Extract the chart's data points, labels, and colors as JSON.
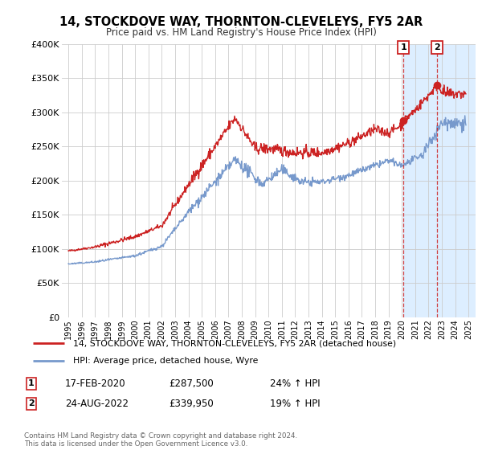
{
  "title": "14, STOCKDOVE WAY, THORNTON-CLEVELEYS, FY5 2AR",
  "subtitle": "Price paid vs. HM Land Registry's House Price Index (HPI)",
  "legend_line1": "14, STOCKDOVE WAY, THORNTON-CLEVELEYS, FY5 2AR (detached house)",
  "legend_line2": "HPI: Average price, detached house, Wyre",
  "sale1_date": "17-FEB-2020",
  "sale1_price": 287500,
  "sale1_hpi": "24% ↑ HPI",
  "sale1_year": 2020.12,
  "sale2_date": "24-AUG-2022",
  "sale2_price": 339950,
  "sale2_hpi": "19% ↑ HPI",
  "sale2_year": 2022.64,
  "ylim": [
    0,
    400000
  ],
  "yticks": [
    0,
    50000,
    100000,
    150000,
    200000,
    250000,
    300000,
    350000,
    400000
  ],
  "ytick_labels": [
    "£0",
    "£50K",
    "£100K",
    "£150K",
    "£200K",
    "£250K",
    "£300K",
    "£350K",
    "£400K"
  ],
  "xlim_min": 1994.5,
  "xlim_max": 2025.5,
  "xtick_years": [
    1995,
    1996,
    1997,
    1998,
    1999,
    2000,
    2001,
    2002,
    2003,
    2004,
    2005,
    2006,
    2007,
    2008,
    2009,
    2010,
    2011,
    2012,
    2013,
    2014,
    2015,
    2016,
    2017,
    2018,
    2019,
    2020,
    2021,
    2022,
    2023,
    2024,
    2025
  ],
  "red_color": "#cc2222",
  "blue_color": "#7799cc",
  "shaded_color": "#ddeeff",
  "grid_color": "#cccccc",
  "footnote": "Contains HM Land Registry data © Crown copyright and database right 2024.\nThis data is licensed under the Open Government Licence v3.0."
}
